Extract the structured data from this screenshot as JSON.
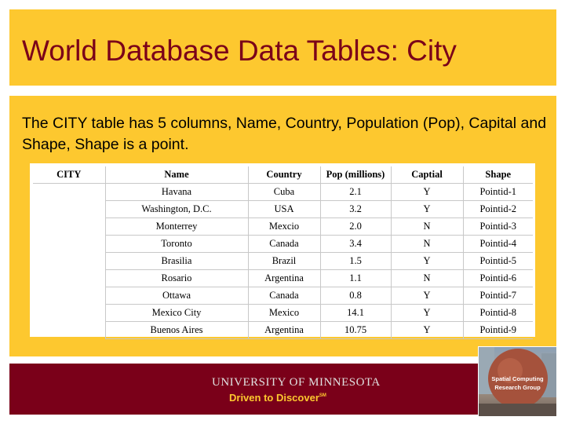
{
  "title": "World Database Data Tables: City",
  "description": {
    "prefix": "The ",
    "highlight": "CITY",
    "suffix": " table has 5 columns, Name, Country, Population (Pop), Capital and Shape, Shape is a point."
  },
  "table": {
    "headers": [
      "CITY",
      "Name",
      "Country",
      "Pop (millions)",
      "Captial",
      "Shape"
    ],
    "rows": [
      [
        "",
        "Havana",
        "Cuba",
        "2.1",
        "Y",
        "Pointid-1"
      ],
      [
        "",
        "Washington, D.C.",
        "USA",
        "3.2",
        "Y",
        "Pointid-2"
      ],
      [
        "",
        "Monterrey",
        "Mexcio",
        "2.0",
        "N",
        "Pointid-3"
      ],
      [
        "",
        "Toronto",
        "Canada",
        "3.4",
        "N",
        "Pointid-4"
      ],
      [
        "",
        "Brasilia",
        "Brazil",
        "1.5",
        "Y",
        "Pointid-5"
      ],
      [
        "",
        "Rosario",
        "Argentina",
        "1.1",
        "N",
        "Pointid-6"
      ],
      [
        "",
        "Ottawa",
        "Canada",
        "0.8",
        "Y",
        "Pointid-7"
      ],
      [
        "",
        "Mexico City",
        "Mexico",
        "14.1",
        "Y",
        "Pointid-8"
      ],
      [
        "",
        "Buenos Aires",
        "Argentina",
        "10.75",
        "Y",
        "Pointid-9"
      ]
    ]
  },
  "footer": {
    "university": "UNIVERSITY OF MINNESOTA",
    "tagline": "Driven to Discover",
    "tagline_mark": "SM"
  },
  "logo": {
    "line1": "Spatial Computing",
    "line2": "Research Group"
  },
  "colors": {
    "gold": "#fdc82f",
    "maroon": "#7a0019"
  }
}
